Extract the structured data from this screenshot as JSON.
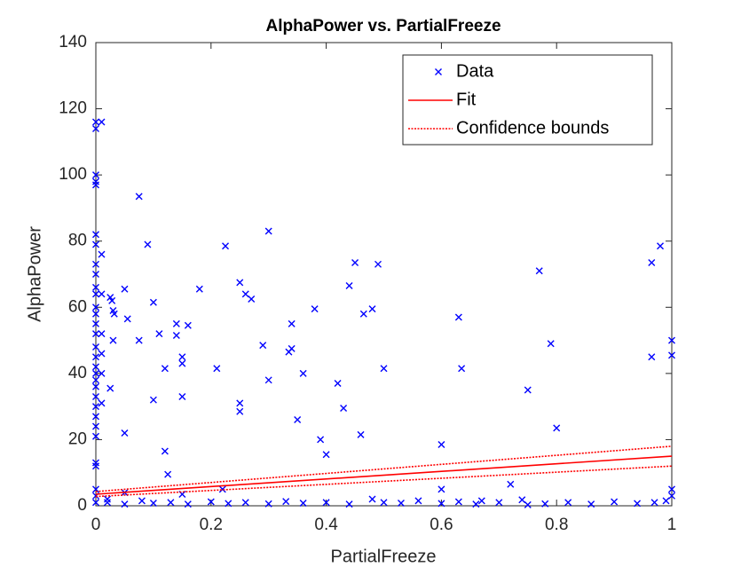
{
  "chart_data": {
    "type": "scatter",
    "title": "AlphaPower vs. PartialFreeze",
    "xlabel": "PartialFreeze",
    "ylabel": "AlphaPower",
    "xlim": [
      0,
      1
    ],
    "xticks": [
      0,
      0.2,
      0.4,
      0.6,
      0.8,
      1
    ],
    "ylim": [
      0,
      140
    ],
    "yticks": [
      0,
      20,
      40,
      60,
      80,
      100,
      120,
      140
    ],
    "grid": false,
    "legend": "northeast",
    "series": [
      {
        "name": "Data",
        "color": "#0000ff",
        "marker": "x",
        "x": [
          0,
          0,
          0,
          0,
          0,
          0.01,
          0,
          0,
          0,
          0.01,
          0,
          0,
          0,
          0,
          0,
          0,
          0,
          0,
          0,
          0,
          0,
          0,
          0,
          0,
          0,
          0,
          0,
          0,
          0,
          0,
          0,
          0,
          0,
          0.01,
          0.01,
          0.01,
          0.01,
          0.01,
          0.025,
          0.028,
          0.03,
          0.032,
          0.03,
          0.025,
          0.05,
          0.055,
          0.05,
          0.075,
          0.09,
          0.075,
          0.1,
          0.1,
          0.11,
          0.12,
          0.12,
          0.125,
          0.14,
          0.14,
          0.15,
          0.15,
          0.15,
          0.16,
          0.18,
          0.21,
          0.225,
          0.25,
          0.25,
          0.25,
          0.26,
          0.27,
          0.29,
          0.3,
          0.3,
          0.34,
          0.335,
          0.34,
          0.35,
          0.36,
          0.38,
          0.39,
          0.4,
          0.42,
          0.43,
          0.44,
          0.45,
          0.46,
          0.465,
          0.48,
          0.49,
          0.5,
          0.6,
          0.6,
          0.63,
          0.635,
          0.72,
          0.75,
          0.77,
          0.79,
          0.8,
          0.965,
          0.965,
          0.98,
          1,
          1,
          1,
          1,
          0.02,
          0.05,
          0.08,
          0.1,
          0.13,
          0.16,
          0.2,
          0.23,
          0.26,
          0.3,
          0.33,
          0.36,
          0.4,
          0.44,
          0.48,
          0.5,
          0.53,
          0.56,
          0.6,
          0.63,
          0.66,
          0.7,
          0.74,
          0.78,
          0.82,
          0.86,
          0.9,
          0.94,
          0.97,
          0.99,
          0.05,
          0.15,
          0.22,
          0.02,
          0.67,
          0.75
        ],
        "values": [
          116,
          114,
          100,
          98,
          97,
          116,
          82,
          79,
          73,
          76,
          70,
          66,
          64,
          60,
          58,
          55,
          52,
          48,
          45,
          42,
          40,
          38,
          36,
          33,
          30,
          27,
          24,
          21,
          13,
          12,
          5,
          3,
          1,
          64,
          52,
          46,
          40,
          31,
          63,
          62,
          59,
          58,
          50,
          35.5,
          65.5,
          56.5,
          22,
          93.5,
          79,
          50,
          61.5,
          32,
          52,
          41.5,
          16.5,
          9.5,
          55,
          51.5,
          45,
          43,
          33,
          54.5,
          65.5,
          41.5,
          78.5,
          67.5,
          31,
          28.5,
          64,
          62.5,
          48.5,
          83,
          38,
          55,
          46.5,
          47.5,
          26,
          40,
          59.5,
          20,
          15.5,
          37,
          29.5,
          66.5,
          73.5,
          21.5,
          58,
          59.5,
          73,
          41.5,
          18.5,
          5,
          57,
          41.5,
          6.5,
          35,
          71,
          49,
          23.5,
          73.5,
          45,
          78.5,
          50,
          45.5,
          5,
          3,
          1,
          0.5,
          1.5,
          0.8,
          1,
          0.5,
          1.2,
          0.7,
          1,
          0.6,
          1.3,
          0.8,
          1,
          0.5,
          2,
          1,
          0.8,
          1.5,
          0.7,
          1.2,
          0.5,
          1,
          1.8,
          0.6,
          1,
          0.5,
          1.2,
          0.7,
          1,
          1.5,
          4,
          3.5,
          5,
          2,
          1.5,
          0.3
        ]
      },
      {
        "name": "Fit",
        "color": "#ff0000",
        "linestyle": "solid",
        "x": [
          0,
          1
        ],
        "values": [
          3.5,
          15
        ]
      },
      {
        "name": "Confidence bounds",
        "color": "#ff0000",
        "linestyle": "dotted",
        "x": [
          0,
          1
        ],
        "values": [
          4.3,
          18
        ],
        "values_lower": [
          2.8,
          12
        ]
      }
    ]
  }
}
